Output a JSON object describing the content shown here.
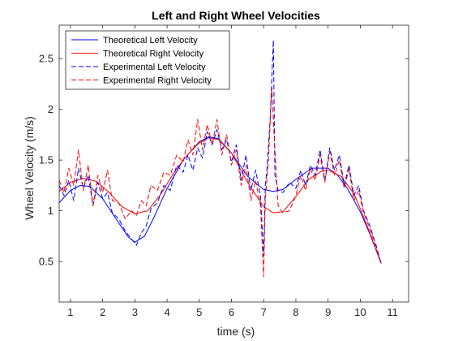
{
  "chart_data": {
    "type": "line",
    "title": "Left and Right Wheel Velocities",
    "xlabel": "time (s)",
    "ylabel": "Wheel Velocity (m/s)",
    "xlim": [
      0.65,
      11.5
    ],
    "ylim": [
      0.1,
      2.83
    ],
    "xticks": [
      "1",
      "2",
      "3",
      "4",
      "5",
      "6",
      "7",
      "8",
      "9",
      "10",
      "11"
    ],
    "yticks": [
      "0.5",
      "1",
      "1.5",
      "2",
      "2.5"
    ],
    "grid": false,
    "legend_position": "top-left",
    "series": [
      {
        "name": "Theoretical Left Velocity",
        "color": "#0000ff",
        "dash": "solid",
        "x": [
          0.65,
          1.0,
          1.3,
          1.6,
          2.0,
          2.5,
          2.8,
          3.0,
          3.3,
          3.6,
          4.0,
          4.5,
          5.0,
          5.3,
          5.6,
          6.0,
          6.5,
          7.0,
          7.3,
          7.6,
          8.0,
          8.5,
          9.0,
          9.3,
          9.6,
          10.0,
          10.3,
          10.65
        ],
        "y": [
          1.08,
          1.2,
          1.25,
          1.24,
          1.12,
          0.88,
          0.74,
          0.69,
          0.75,
          0.94,
          1.22,
          1.5,
          1.68,
          1.73,
          1.71,
          1.57,
          1.34,
          1.21,
          1.19,
          1.21,
          1.31,
          1.42,
          1.42,
          1.35,
          1.22,
          0.99,
          0.77,
          0.48
        ]
      },
      {
        "name": "Theoretical Right Velocity",
        "color": "#ff0000",
        "dash": "solid",
        "x": [
          0.65,
          1.0,
          1.4,
          1.8,
          2.2,
          2.6,
          3.0,
          3.4,
          3.8,
          4.2,
          4.6,
          5.0,
          5.3,
          5.6,
          6.0,
          6.5,
          7.0,
          7.3,
          7.6,
          8.0,
          8.4,
          8.8,
          9.0,
          9.4,
          9.8,
          10.0,
          10.3,
          10.65
        ],
        "y": [
          1.19,
          1.28,
          1.32,
          1.29,
          1.18,
          1.04,
          0.97,
          1.0,
          1.16,
          1.37,
          1.54,
          1.67,
          1.72,
          1.7,
          1.57,
          1.28,
          1.04,
          0.98,
          0.99,
          1.14,
          1.31,
          1.39,
          1.4,
          1.34,
          1.17,
          1.02,
          0.78,
          0.48
        ]
      },
      {
        "name": "Experimental Left Velocity",
        "color": "#0000ff",
        "dash": "dashed",
        "x": [
          0.65,
          0.8,
          0.95,
          1.1,
          1.25,
          1.4,
          1.55,
          1.7,
          1.85,
          2.0,
          2.15,
          2.3,
          2.5,
          2.7,
          2.9,
          3.05,
          3.2,
          3.35,
          3.5,
          3.7,
          3.9,
          4.1,
          4.3,
          4.5,
          4.65,
          4.8,
          4.95,
          5.1,
          5.25,
          5.4,
          5.55,
          5.7,
          5.85,
          6.0,
          6.15,
          6.3,
          6.45,
          6.6,
          6.75,
          6.9,
          7.0,
          7.05,
          7.1,
          7.2,
          7.3,
          7.35,
          7.45,
          7.6,
          7.8,
          8.0,
          8.15,
          8.3,
          8.45,
          8.6,
          8.75,
          8.9,
          9.05,
          9.2,
          9.35,
          9.5,
          9.65,
          9.8,
          9.95,
          10.1,
          10.3,
          10.5,
          10.65
        ],
        "y": [
          1.25,
          1.15,
          1.3,
          1.1,
          1.42,
          1.22,
          1.35,
          1.05,
          1.28,
          1.12,
          1.18,
          0.98,
          0.92,
          0.8,
          0.72,
          0.66,
          0.78,
          0.85,
          1.02,
          1.08,
          1.25,
          1.2,
          1.45,
          1.38,
          1.55,
          1.4,
          1.62,
          1.52,
          1.78,
          1.65,
          1.8,
          1.6,
          1.7,
          1.48,
          1.65,
          1.3,
          1.55,
          1.2,
          1.4,
          1.15,
          0.55,
          1.25,
          1.4,
          1.9,
          2.68,
          1.35,
          1.2,
          1.18,
          1.28,
          1.22,
          1.4,
          1.25,
          1.45,
          1.35,
          1.6,
          1.3,
          1.62,
          1.4,
          1.55,
          1.25,
          1.45,
          1.15,
          1.25,
          1.0,
          0.85,
          0.65,
          0.48
        ]
      },
      {
        "name": "Experimental Right Velocity",
        "color": "#ff0000",
        "dash": "dashed",
        "x": [
          0.65,
          0.8,
          0.95,
          1.1,
          1.25,
          1.4,
          1.55,
          1.7,
          1.85,
          2.0,
          2.15,
          2.3,
          2.5,
          2.7,
          2.9,
          3.05,
          3.2,
          3.35,
          3.5,
          3.7,
          3.9,
          4.1,
          4.3,
          4.5,
          4.65,
          4.8,
          4.95,
          5.1,
          5.25,
          5.4,
          5.55,
          5.7,
          5.85,
          6.0,
          6.15,
          6.3,
          6.45,
          6.6,
          6.75,
          6.9,
          7.0,
          7.05,
          7.15,
          7.25,
          7.35,
          7.45,
          7.6,
          7.8,
          8.0,
          8.15,
          8.3,
          8.45,
          8.6,
          8.75,
          8.9,
          9.05,
          9.2,
          9.35,
          9.5,
          9.65,
          9.8,
          9.95,
          10.1,
          10.3,
          10.5,
          10.65
        ],
        "y": [
          1.3,
          1.18,
          1.42,
          1.25,
          1.6,
          1.2,
          1.45,
          1.05,
          1.35,
          1.18,
          1.4,
          1.1,
          1.08,
          0.92,
          1.0,
          0.95,
          1.1,
          1.05,
          1.25,
          1.2,
          1.38,
          1.35,
          1.55,
          1.48,
          1.7,
          1.55,
          1.9,
          1.6,
          1.85,
          1.65,
          1.9,
          1.55,
          1.75,
          1.45,
          1.6,
          1.25,
          1.45,
          1.1,
          1.3,
          1.05,
          0.35,
          1.1,
          1.5,
          2.22,
          1.6,
          1.05,
          0.98,
          1.0,
          1.15,
          1.35,
          1.2,
          1.42,
          1.3,
          1.55,
          1.28,
          1.58,
          1.35,
          1.5,
          1.22,
          1.42,
          1.1,
          1.2,
          0.98,
          0.82,
          0.62,
          0.48
        ]
      }
    ]
  }
}
